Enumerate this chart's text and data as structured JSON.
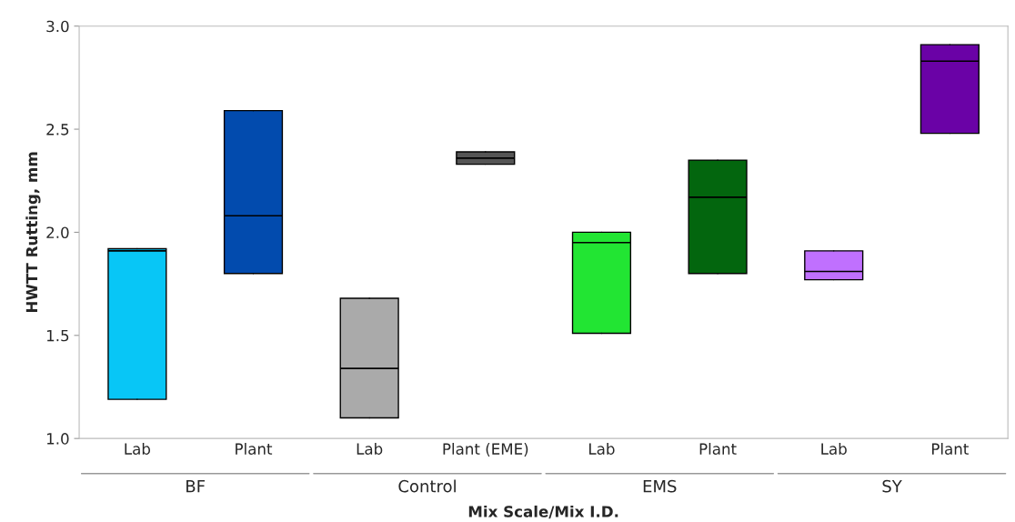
{
  "chart_data": {
    "type": "box",
    "xlabel": "Mix Scale/Mix I.D.",
    "ylabel": "HWTT Rutting, mm",
    "categories": [
      "Lab",
      "Plant",
      "Lab",
      "Plant (EME)",
      "Lab",
      "Plant",
      "Lab",
      "Plant"
    ],
    "annotations": [
      "BF",
      "Control",
      "EMS",
      "SY"
    ],
    "boxes": [
      {
        "low": 1.19,
        "q1": 1.19,
        "median": 1.91,
        "q3": 1.92,
        "high": 1.92
      },
      {
        "low": 1.8,
        "q1": 1.8,
        "median": 2.08,
        "q3": 2.59,
        "high": 2.59
      },
      {
        "low": 1.1,
        "q1": 1.1,
        "median": 1.34,
        "q3": 1.68,
        "high": 1.68
      },
      {
        "low": 2.33,
        "q1": 2.33,
        "median": 2.36,
        "q3": 2.39,
        "high": 2.39
      },
      {
        "low": 1.51,
        "q1": 1.51,
        "median": 1.95,
        "q3": 2.0,
        "high": 2.0
      },
      {
        "low": 1.8,
        "q1": 1.8,
        "median": 2.17,
        "q3": 2.35,
        "high": 2.35
      },
      {
        "low": 1.77,
        "q1": 1.77,
        "median": 1.81,
        "q3": 1.91,
        "high": 1.91
      },
      {
        "low": 2.48,
        "q1": 2.48,
        "median": 2.83,
        "q3": 2.91,
        "high": 2.91
      }
    ],
    "colors": [
      "#08c6f6",
      "#024bae",
      "#aaaaaa",
      "#555555",
      "#22e533",
      "#03660e",
      "#c070fe",
      "#6a02a6"
    ],
    "ylim": [
      1.0,
      3.0
    ],
    "yticks": [
      {
        "value": 1,
        "label": "1.0"
      },
      1.5,
      {
        "value": 2,
        "label": "2.0"
      },
      2.5,
      {
        "value": 3,
        "label": "3.0"
      }
    ],
    "grid": false
  }
}
